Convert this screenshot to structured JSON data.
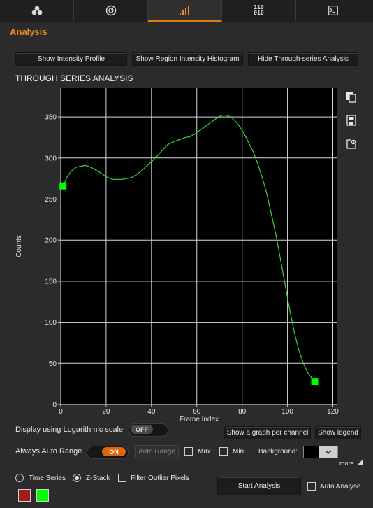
{
  "tabs": [
    {
      "name": "channels-tab",
      "icon": "circles-icon"
    },
    {
      "name": "display-tab",
      "icon": "dial-icon"
    },
    {
      "name": "analysis-tab",
      "icon": "bar-chart-icon",
      "active": true
    },
    {
      "name": "binary-tab",
      "icon": "binary-icon",
      "line1": "110",
      "line2": "010"
    },
    {
      "name": "terminal-tab",
      "icon": "terminal-icon"
    }
  ],
  "section": {
    "title": "Analysis"
  },
  "buttons": {
    "intensity_profile": "Show Intensity Profile",
    "region_histogram": "Show Region Intensity Histogram",
    "hide_through_series": "Hide Through-series Analysis",
    "graph_per_channel": "Show a graph per channel",
    "show_legend": "Show legend",
    "auto_range": "Auto Range",
    "start_analysis": "Start Analysis"
  },
  "plot_title": "THROUGH SERIES ANALYSIS",
  "chart_data": {
    "type": "line",
    "xlabel": "Frame Index",
    "ylabel": "Counts",
    "xlim": [
      0,
      122
    ],
    "ylim": [
      0,
      385
    ],
    "xticks": [
      0,
      20,
      40,
      60,
      80,
      100,
      120
    ],
    "yticks": [
      0,
      50,
      100,
      150,
      200,
      250,
      300,
      350
    ],
    "grid": true,
    "line_color": "#35d635",
    "marker_color": "#00ff00",
    "x": [
      1,
      3,
      5,
      7,
      9,
      11,
      13,
      15,
      17,
      19,
      21,
      23,
      25,
      27,
      29,
      31,
      33,
      35,
      37,
      39,
      41,
      43,
      45,
      47,
      49,
      51,
      53,
      55,
      57,
      59,
      61,
      63,
      65,
      67,
      69,
      71,
      73,
      75,
      77,
      79,
      81,
      83,
      85,
      87,
      89,
      91,
      93,
      95,
      97,
      99,
      101,
      103,
      105,
      107,
      109,
      111,
      112
    ],
    "values": [
      266,
      278,
      285,
      289,
      290,
      291,
      289,
      286,
      283,
      279,
      276,
      274,
      274,
      274,
      275,
      276,
      279,
      283,
      288,
      293,
      298,
      304,
      310,
      316,
      319,
      321,
      323,
      325,
      326,
      329,
      333,
      337,
      341,
      345,
      349,
      352,
      352,
      350,
      345,
      338,
      329,
      318,
      307,
      292,
      275,
      255,
      230,
      205,
      175,
      145,
      115,
      88,
      66,
      50,
      38,
      31,
      28
    ],
    "markers": [
      {
        "x": 1,
        "y": 266
      },
      {
        "x": 112,
        "y": 28
      }
    ]
  },
  "controls": {
    "log_scale_label": "Display using Logarithmic scale",
    "log_scale_state": "OFF",
    "auto_range_label": "Always Auto Range",
    "auto_range_state": "ON",
    "max_label": "Max",
    "min_label": "Min",
    "background_label": "Background:",
    "background_color": "#000000",
    "more_label": "more",
    "time_series_label": "Time Series",
    "z_stack_label": "Z-Stack",
    "filter_outlier_label": "Filter Outlier Pixels",
    "auto_analyse_label": "Auto Analyse",
    "swatch_colors": [
      "#a21c1c",
      "#00ff00"
    ]
  }
}
